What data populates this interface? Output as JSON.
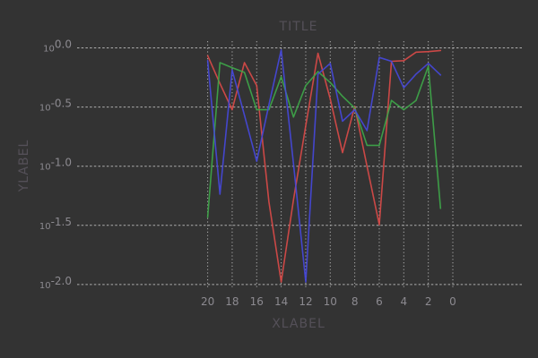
{
  "window": {
    "background": "#333333"
  },
  "header": {
    "title": "TITLE"
  },
  "colors": {
    "background": "#333333",
    "grid": "#d8d8d8",
    "tick_text": "#8c8a90",
    "label_text": "#545058",
    "series_red": "#dc4a48",
    "series_green": "#3ea949",
    "series_blue": "#4648de"
  },
  "chart_data": {
    "type": "line",
    "title": "TITLE",
    "xlabel": "XLABEL",
    "ylabel": "YLABEL",
    "grid": true,
    "legend": "none",
    "x_axis_reversed": true,
    "y_scale": "log10",
    "xlim": [
      21,
      0
    ],
    "ylim": [
      0.01,
      1.0
    ],
    "x_ticks": [
      20,
      18,
      16,
      14,
      12,
      10,
      8,
      6,
      4,
      2,
      0
    ],
    "y_ticks": [
      {
        "base": "10",
        "exponent": "0.0"
      },
      {
        "base": "10",
        "exponent": "-0.5"
      },
      {
        "base": "10",
        "exponent": "-1.0"
      },
      {
        "base": "10",
        "exponent": "-1.5"
      },
      {
        "base": "10",
        "exponent": "-2.0"
      }
    ],
    "x": [
      20,
      19,
      18,
      17,
      16,
      15,
      14,
      13,
      12,
      11,
      10,
      9,
      8,
      7,
      6,
      5,
      4,
      3,
      2,
      1
    ],
    "series": [
      {
        "name": "red",
        "color": "#dc4a48",
        "values": [
          0.86,
          0.5,
          0.3,
          0.75,
          0.48,
          0.05,
          0.0105,
          0.052,
          0.22,
          0.9,
          0.37,
          0.13,
          0.32,
          0.1,
          0.032,
          0.77,
          0.78,
          0.92,
          0.93,
          0.95
        ]
      },
      {
        "name": "green",
        "color": "#3ea949",
        "values": [
          0.037,
          0.75,
          0.68,
          0.62,
          0.3,
          0.3,
          0.57,
          0.26,
          0.48,
          0.63,
          0.51,
          0.39,
          0.31,
          0.15,
          0.15,
          0.36,
          0.3,
          0.36,
          0.7,
          0.044
        ]
      },
      {
        "name": "blue",
        "color": "#4648de",
        "values": [
          0.78,
          0.058,
          0.65,
          0.27,
          0.11,
          0.33,
          0.96,
          0.105,
          0.0105,
          0.6,
          0.74,
          0.24,
          0.3,
          0.2,
          0.83,
          0.77,
          0.46,
          0.6,
          0.74,
          0.59
        ]
      }
    ]
  }
}
